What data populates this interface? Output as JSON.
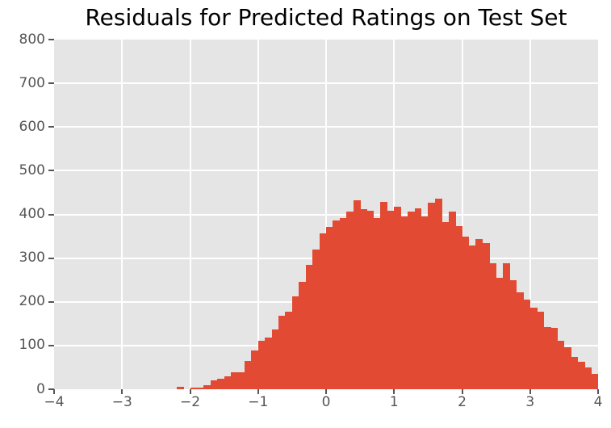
{
  "chart_data": {
    "type": "bar",
    "subtype": "histogram",
    "title": "Residuals for Predicted Ratings on Test Set",
    "xlabel": "",
    "ylabel": "",
    "xlim": [
      -4,
      4
    ],
    "ylim": [
      0,
      800
    ],
    "xticks": [
      -4,
      -3,
      -2,
      -1,
      0,
      1,
      2,
      3,
      4
    ],
    "yticks": [
      0,
      100,
      200,
      300,
      400,
      500,
      600,
      700,
      800
    ],
    "grid": true,
    "legend_position": "none",
    "bin_start": -2.2,
    "bin_width": 0.1,
    "values": [
      6,
      0,
      3,
      4,
      9,
      20,
      24,
      30,
      39,
      39,
      64,
      88,
      110,
      119,
      136,
      168,
      178,
      212,
      246,
      285,
      319,
      357,
      372,
      386,
      392,
      406,
      433,
      412,
      408,
      391,
      428,
      409,
      418,
      396,
      407,
      413,
      396,
      426,
      436,
      383,
      406,
      373,
      350,
      328,
      344,
      335,
      289,
      255,
      289,
      249,
      221,
      206,
      187,
      177,
      143,
      141,
      110,
      97,
      74,
      63,
      49,
      36
    ],
    "colors": {
      "bar": "#E24A33",
      "plot_bg": "#E5E5E5",
      "grid": "#FFFFFF",
      "tick_text": "#555555",
      "tick_mark": "#555555",
      "title_text": "#000000",
      "fig_bg": "#FFFFFF"
    }
  }
}
